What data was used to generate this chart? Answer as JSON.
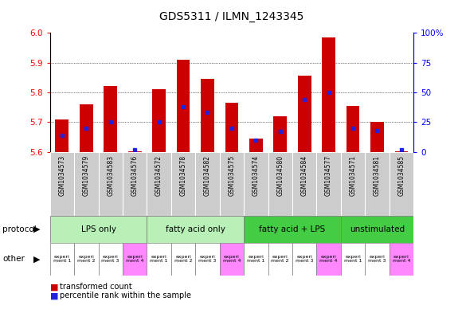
{
  "title": "GDS5311 / ILMN_1243345",
  "samples": [
    "GSM1034573",
    "GSM1034579",
    "GSM1034583",
    "GSM1034576",
    "GSM1034572",
    "GSM1034578",
    "GSM1034582",
    "GSM1034575",
    "GSM1034574",
    "GSM1034580",
    "GSM1034584",
    "GSM1034577",
    "GSM1034571",
    "GSM1034581",
    "GSM1034585"
  ],
  "red_values": [
    5.71,
    5.76,
    5.82,
    5.602,
    5.81,
    5.91,
    5.845,
    5.765,
    5.645,
    5.72,
    5.855,
    5.985,
    5.755,
    5.7,
    5.601
  ],
  "blue_values": [
    14,
    20,
    25,
    2,
    25,
    38,
    33,
    20,
    10,
    17,
    44,
    50,
    20,
    18,
    2
  ],
  "ymin": 5.6,
  "ymax": 6.0,
  "yticks": [
    5.6,
    5.7,
    5.8,
    5.9,
    6.0
  ],
  "y2min": 0,
  "y2max": 100,
  "y2ticks": [
    0,
    25,
    50,
    75,
    100
  ],
  "protocols": [
    {
      "label": "LPS only",
      "start": 0,
      "end": 4,
      "color": "#b8f0b8"
    },
    {
      "label": "fatty acid only",
      "start": 4,
      "end": 8,
      "color": "#b8f0b8"
    },
    {
      "label": "fatty acid + LPS",
      "start": 8,
      "end": 12,
      "color": "#44cc44"
    },
    {
      "label": "unstimulated",
      "start": 12,
      "end": 15,
      "color": "#44cc44"
    }
  ],
  "experiment_labels": [
    "experi\nment 1",
    "experi\nment 2",
    "experi\nment 3",
    "experi\nment 4",
    "experi\nment 1",
    "experi\nment 2",
    "experi\nment 3",
    "experi\nment 4",
    "experi\nment 1",
    "experi\nment 2",
    "experi\nment 3",
    "experi\nment 4",
    "experi\nment 1",
    "experi\nment 3",
    "experi\nment 4"
  ],
  "experiment_colors": [
    "#ffffff",
    "#ffffff",
    "#ffffff",
    "#ff88ff",
    "#ffffff",
    "#ffffff",
    "#ffffff",
    "#ff88ff",
    "#ffffff",
    "#ffffff",
    "#ffffff",
    "#ff88ff",
    "#ffffff",
    "#ffffff",
    "#ff88ff"
  ],
  "bar_color": "#cc0000",
  "blue_color": "#2222dd",
  "bar_width": 0.55,
  "base": 5.6,
  "sample_bg": "#cccccc"
}
